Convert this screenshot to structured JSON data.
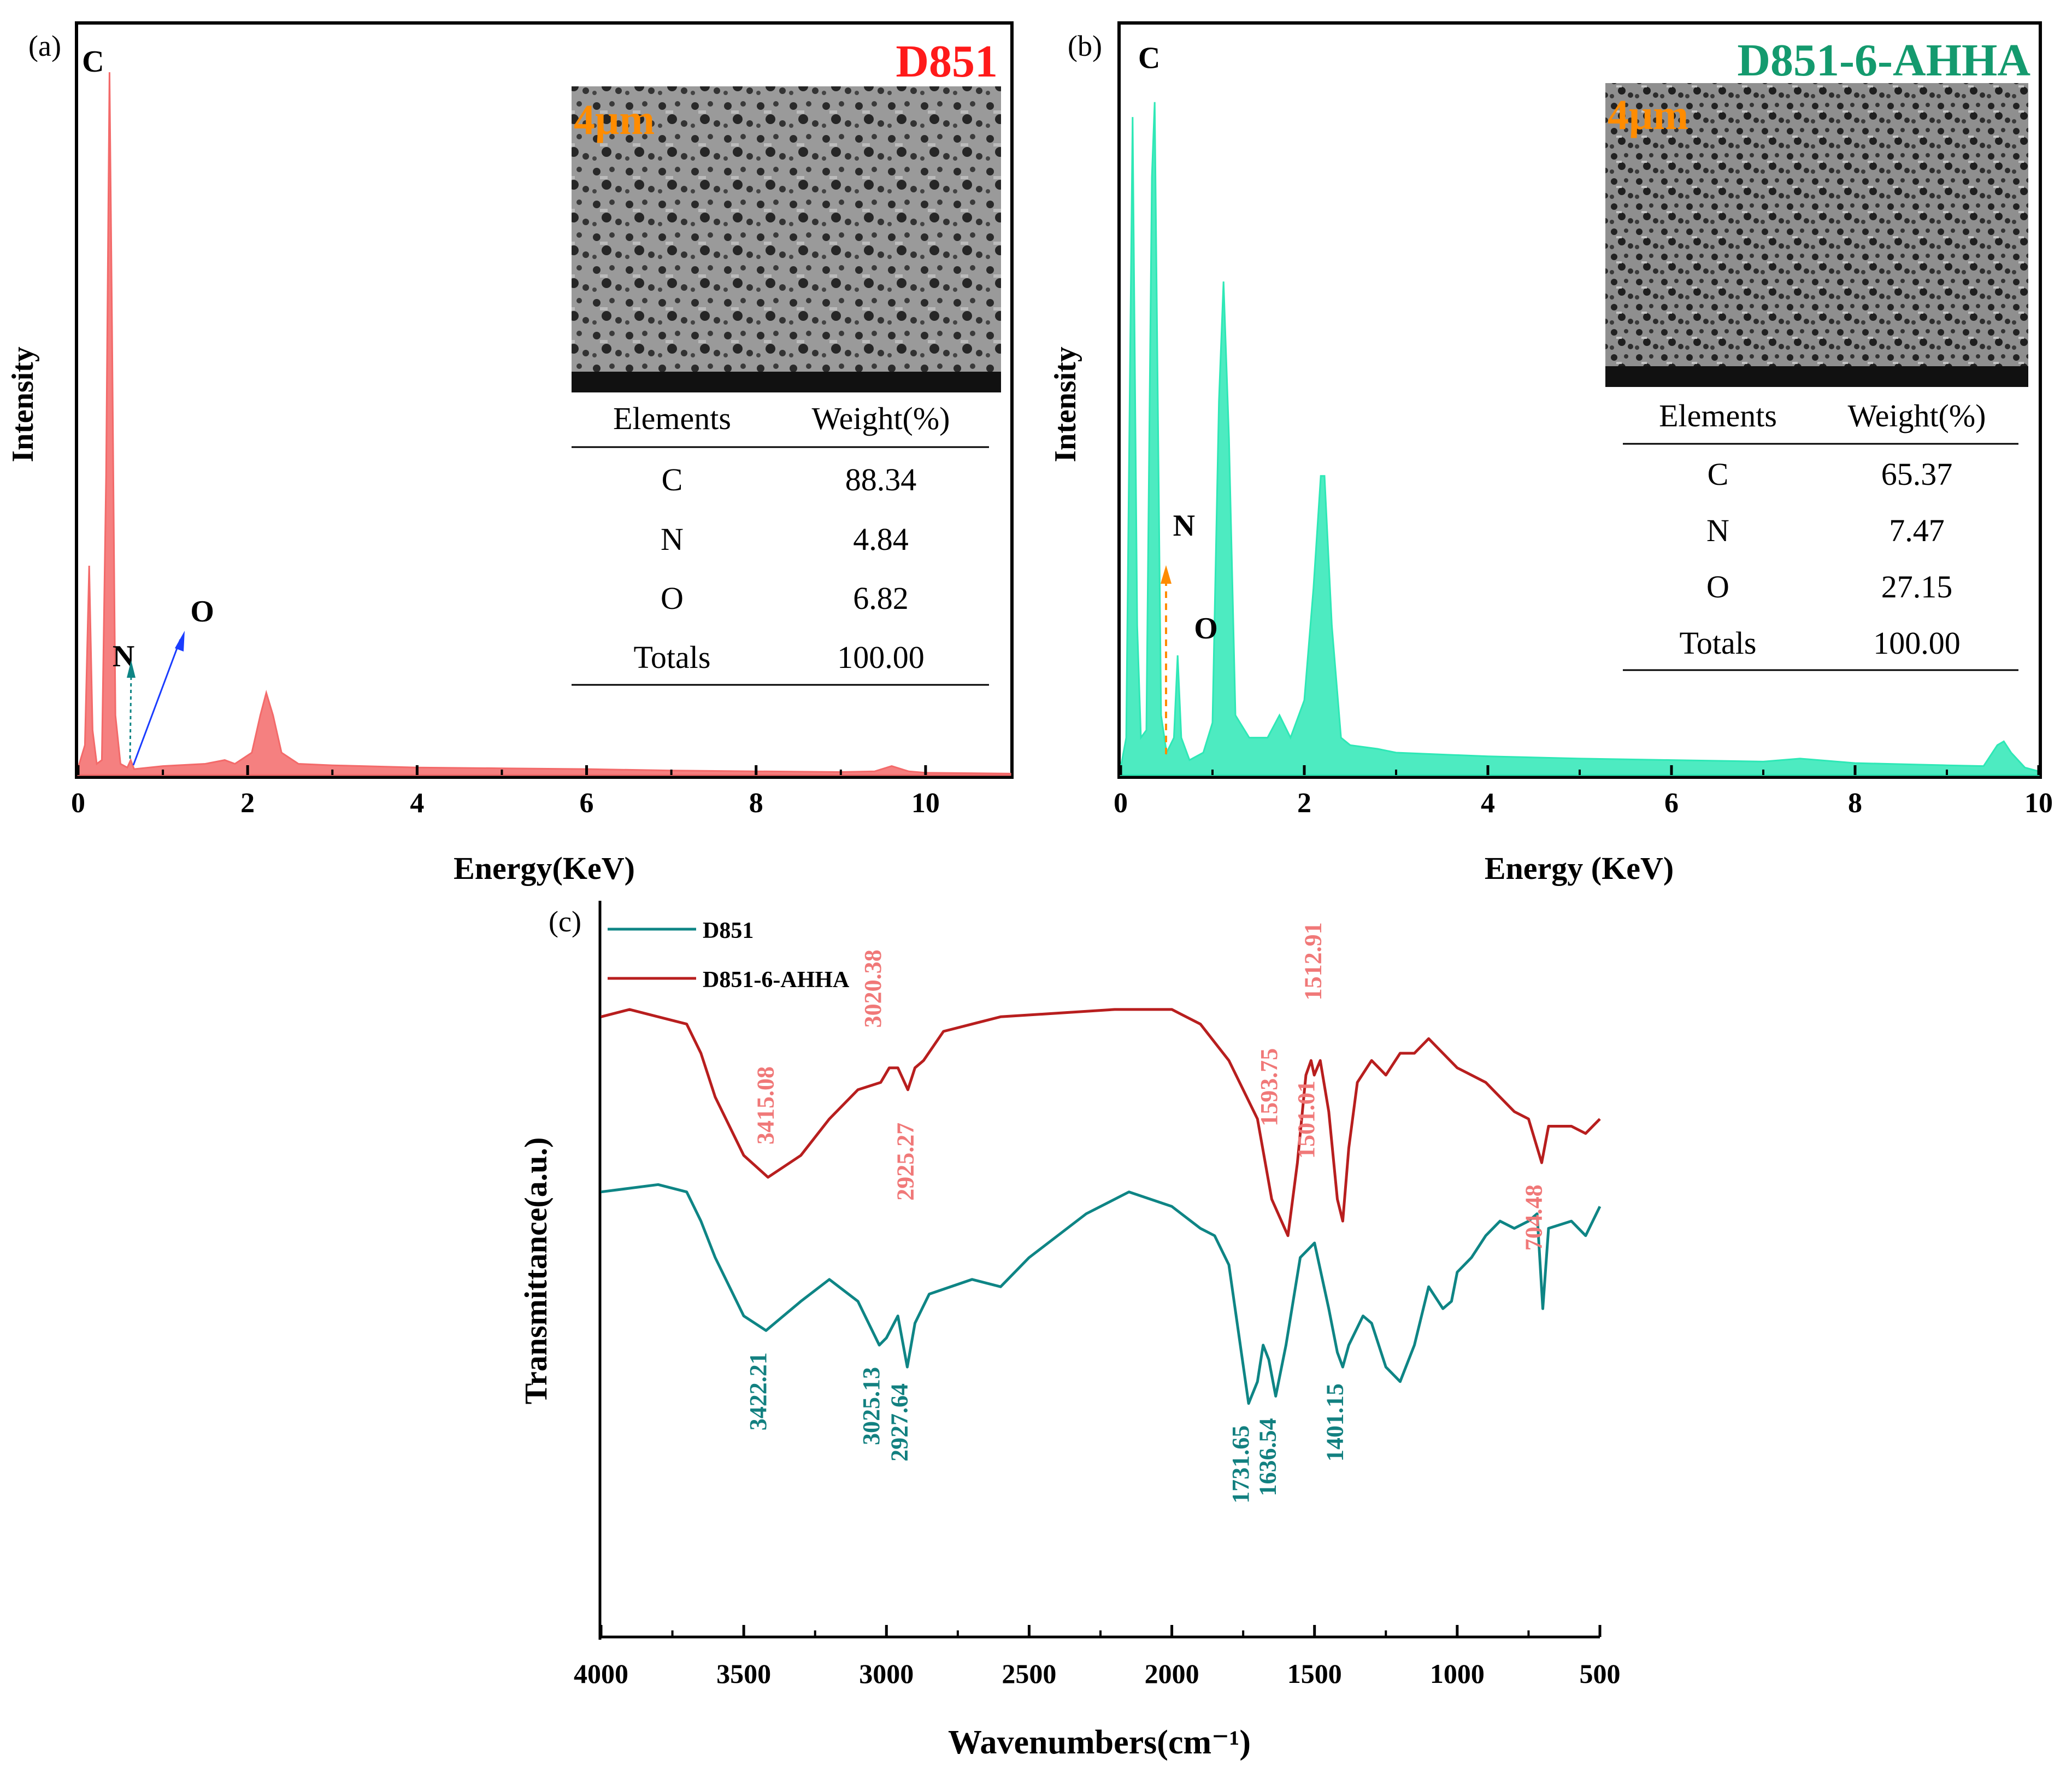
{
  "figure": {
    "panels": [
      {
        "id": "a",
        "label": "(a)",
        "title": "D851",
        "title_color": "#ff1a1a",
        "scale_bar": "4μm",
        "xlabel": "Energy(KeV)",
        "ylabel": "Intensity",
        "table": {
          "headers": [
            "Elements",
            "Weight(%)"
          ],
          "rows": [
            [
              "C",
              "88.34"
            ],
            [
              "N",
              "4.84"
            ],
            [
              "O",
              "6.82"
            ],
            [
              "Totals",
              "100.00"
            ]
          ]
        },
        "peak_labels": [
          "C",
          "N",
          "O"
        ]
      },
      {
        "id": "b",
        "label": "(b)",
        "title": "D851-6-AHHA",
        "title_color": "#149a6e",
        "scale_bar": "4μm",
        "xlabel": "Energy (KeV)",
        "ylabel": "Intensity",
        "table": {
          "headers": [
            "Elements",
            "Weight(%)"
          ],
          "rows": [
            [
              "C",
              "65.37"
            ],
            [
              "N",
              "7.47"
            ],
            [
              "O",
              "27.15"
            ],
            [
              "Totals",
              "100.00"
            ]
          ]
        },
        "peak_labels": [
          "C",
          "N",
          "O"
        ]
      },
      {
        "id": "c",
        "label": "(c)",
        "xlabel": "Wavenumbers(cm⁻¹)",
        "ylabel": "Transmittance(a.u.)",
        "legend": [
          {
            "name": "D851",
            "color": "#0e8585"
          },
          {
            "name": "D851-6-AHHA",
            "color": "#b81e1e"
          }
        ]
      }
    ]
  },
  "chart_data": [
    {
      "type": "area",
      "panel": "a",
      "x_range": [
        0,
        11
      ],
      "y_range": [
        0,
        100
      ],
      "x_ticks": [
        0,
        2,
        4,
        6,
        8,
        10
      ],
      "y_ticks": [],
      "color": "#f36a6a",
      "points": [
        [
          0,
          1
        ],
        [
          0.08,
          4
        ],
        [
          0.13,
          28
        ],
        [
          0.17,
          6
        ],
        [
          0.22,
          1.5
        ],
        [
          0.28,
          2
        ],
        [
          0.33,
          40
        ],
        [
          0.37,
          94
        ],
        [
          0.4,
          60
        ],
        [
          0.44,
          8
        ],
        [
          0.5,
          1.5
        ],
        [
          0.58,
          1
        ],
        [
          0.62,
          2
        ],
        [
          0.66,
          0.8
        ],
        [
          1,
          1.2
        ],
        [
          1.5,
          1.5
        ],
        [
          1.73,
          2
        ],
        [
          1.85,
          1.5
        ],
        [
          2.05,
          3
        ],
        [
          2.15,
          8
        ],
        [
          2.22,
          11
        ],
        [
          2.3,
          8
        ],
        [
          2.4,
          3
        ],
        [
          2.6,
          1.5
        ],
        [
          3,
          1.3
        ],
        [
          4,
          1
        ],
        [
          5,
          0.9
        ],
        [
          6,
          0.8
        ],
        [
          7,
          0.6
        ],
        [
          8,
          0.5
        ],
        [
          9,
          0.4
        ],
        [
          9.4,
          0.5
        ],
        [
          9.6,
          1.2
        ],
        [
          9.8,
          0.5
        ],
        [
          10,
          0.3
        ],
        [
          11,
          0.2
        ]
      ],
      "annotations": [
        {
          "text": "C",
          "x": 0.37,
          "y": 97
        },
        {
          "text": "N",
          "x": 0.6,
          "y": 16
        },
        {
          "text": "O",
          "x": 1.4,
          "y": 22
        }
      ]
    },
    {
      "type": "area",
      "panel": "b",
      "x_range": [
        0,
        10
      ],
      "y_range": [
        0,
        100
      ],
      "x_ticks": [
        0,
        2,
        4,
        6,
        8,
        10
      ],
      "y_ticks": [],
      "color": "#2ee8b6",
      "points": [
        [
          0,
          1
        ],
        [
          0.06,
          5
        ],
        [
          0.13,
          88
        ],
        [
          0.18,
          20
        ],
        [
          0.22,
          5
        ],
        [
          0.28,
          6
        ],
        [
          0.34,
          80
        ],
        [
          0.37,
          90
        ],
        [
          0.4,
          55
        ],
        [
          0.44,
          8
        ],
        [
          0.5,
          3
        ],
        [
          0.58,
          5
        ],
        [
          0.62,
          16
        ],
        [
          0.66,
          5
        ],
        [
          0.75,
          2
        ],
        [
          0.9,
          3
        ],
        [
          1,
          7
        ],
        [
          1.07,
          50
        ],
        [
          1.12,
          66
        ],
        [
          1.18,
          45
        ],
        [
          1.25,
          8
        ],
        [
          1.4,
          5
        ],
        [
          1.6,
          5
        ],
        [
          1.73,
          8
        ],
        [
          1.85,
          5
        ],
        [
          2,
          10
        ],
        [
          2.1,
          25
        ],
        [
          2.18,
          40
        ],
        [
          2.22,
          40
        ],
        [
          2.3,
          20
        ],
        [
          2.4,
          5
        ],
        [
          2.5,
          4
        ],
        [
          2.8,
          3.5
        ],
        [
          3,
          3
        ],
        [
          4,
          2.5
        ],
        [
          5,
          2.2
        ],
        [
          6,
          2
        ],
        [
          7,
          1.8
        ],
        [
          7.4,
          2.2
        ],
        [
          8,
          1.6
        ],
        [
          9,
          1.3
        ],
        [
          9.4,
          1.2
        ],
        [
          9.55,
          4
        ],
        [
          9.62,
          4.5
        ],
        [
          9.7,
          3
        ],
        [
          9.85,
          1
        ],
        [
          10,
          0.5
        ]
      ],
      "annotations": [
        {
          "text": "C",
          "x": 0.37,
          "y": 96
        },
        {
          "text": "N",
          "x": 0.63,
          "y": 32
        },
        {
          "text": "O",
          "x": 0.75,
          "y": 19
        }
      ]
    },
    {
      "type": "line",
      "panel": "c",
      "x_range": [
        4000,
        500
      ],
      "x_ticks": [
        4000,
        3500,
        3000,
        2500,
        2000,
        1500,
        1000,
        500
      ],
      "y_range": [
        0,
        100
      ],
      "series": [
        {
          "name": "D851-6-AHHA",
          "color": "#b81e1e",
          "points": [
            [
              4000,
              85
            ],
            [
              3900,
              86
            ],
            [
              3800,
              85
            ],
            [
              3700,
              84
            ],
            [
              3650,
              80
            ],
            [
              3600,
              74
            ],
            [
              3500,
              66
            ],
            [
              3415,
              63
            ],
            [
              3300,
              66
            ],
            [
              3200,
              71
            ],
            [
              3100,
              75
            ],
            [
              3020,
              76
            ],
            [
              2990,
              78
            ],
            [
              2960,
              78
            ],
            [
              2925,
              75
            ],
            [
              2900,
              78
            ],
            [
              2870,
              79
            ],
            [
              2800,
              83
            ],
            [
              2600,
              85
            ],
            [
              2400,
              85.5
            ],
            [
              2200,
              86
            ],
            [
              2000,
              86
            ],
            [
              1900,
              84
            ],
            [
              1800,
              79
            ],
            [
              1700,
              71
            ],
            [
              1650,
              60
            ],
            [
              1593,
              55
            ],
            [
              1560,
              65
            ],
            [
              1530,
              77
            ],
            [
              1512,
              79
            ],
            [
              1501,
              77
            ],
            [
              1480,
              79
            ],
            [
              1450,
              72
            ],
            [
              1420,
              60
            ],
            [
              1401,
              57
            ],
            [
              1380,
              67
            ],
            [
              1350,
              76
            ],
            [
              1300,
              79
            ],
            [
              1250,
              77
            ],
            [
              1200,
              80
            ],
            [
              1150,
              80
            ],
            [
              1100,
              82
            ],
            [
              1050,
              80
            ],
            [
              1000,
              78
            ],
            [
              950,
              77
            ],
            [
              900,
              76
            ],
            [
              850,
              74
            ],
            [
              800,
              72
            ],
            [
              750,
              71
            ],
            [
              704,
              65
            ],
            [
              680,
              70
            ],
            [
              600,
              70
            ],
            [
              550,
              69
            ],
            [
              500,
              71
            ]
          ]
        },
        {
          "name": "D851",
          "color": "#0e8585",
          "points": [
            [
              4000,
              61
            ],
            [
              3900,
              61.5
            ],
            [
              3800,
              62
            ],
            [
              3700,
              61
            ],
            [
              3650,
              57
            ],
            [
              3600,
              52
            ],
            [
              3500,
              44
            ],
            [
              3422,
              42
            ],
            [
              3300,
              46
            ],
            [
              3200,
              49
            ],
            [
              3100,
              46
            ],
            [
              3025,
              40
            ],
            [
              3000,
              41
            ],
            [
              2960,
              44
            ],
            [
              2927,
              37
            ],
            [
              2900,
              43
            ],
            [
              2850,
              47
            ],
            [
              2700,
              49
            ],
            [
              2600,
              48
            ],
            [
              2500,
              52
            ],
            [
              2300,
              58
            ],
            [
              2150,
              61
            ],
            [
              2000,
              59
            ],
            [
              1900,
              56
            ],
            [
              1850,
              55
            ],
            [
              1800,
              51
            ],
            [
              1760,
              40
            ],
            [
              1731,
              32
            ],
            [
              1700,
              35
            ],
            [
              1680,
              40
            ],
            [
              1660,
              38
            ],
            [
              1636,
              33
            ],
            [
              1600,
              40
            ],
            [
              1550,
              52
            ],
            [
              1500,
              54
            ],
            [
              1450,
              45
            ],
            [
              1420,
              39
            ],
            [
              1401,
              37
            ],
            [
              1380,
              40
            ],
            [
              1330,
              44
            ],
            [
              1300,
              43
            ],
            [
              1250,
              37
            ],
            [
              1200,
              35
            ],
            [
              1150,
              40
            ],
            [
              1100,
              48
            ],
            [
              1050,
              45
            ],
            [
              1020,
              46
            ],
            [
              1000,
              50
            ],
            [
              950,
              52
            ],
            [
              900,
              55
            ],
            [
              850,
              57
            ],
            [
              800,
              56
            ],
            [
              750,
              57
            ],
            [
              720,
              58
            ],
            [
              700,
              45
            ],
            [
              680,
              56
            ],
            [
              600,
              57
            ],
            [
              550,
              55
            ],
            [
              500,
              59
            ]
          ]
        }
      ],
      "annotations": [
        {
          "text": "3415.08",
          "x": 3415,
          "series": "D851-6-AHHA"
        },
        {
          "text": "3020.38",
          "x": 3020,
          "series": "D851-6-AHHA"
        },
        {
          "text": "2925.27",
          "x": 2925,
          "series": "D851-6-AHHA"
        },
        {
          "text": "1593.75",
          "x": 1593,
          "series": "D851-6-AHHA"
        },
        {
          "text": "1512.91",
          "x": 1512,
          "series": "D851-6-AHHA"
        },
        {
          "text": "1501.01",
          "x": 1501,
          "series": "D851-6-AHHA"
        },
        {
          "text": "704.48",
          "x": 704,
          "series": "D851-6-AHHA"
        },
        {
          "text": "3422.21",
          "x": 3422,
          "series": "D851"
        },
        {
          "text": "3025.13",
          "x": 3025,
          "series": "D851"
        },
        {
          "text": "2927.64",
          "x": 2927,
          "series": "D851"
        },
        {
          "text": "1731.65",
          "x": 1731,
          "series": "D851"
        },
        {
          "text": "1636.54",
          "x": 1636,
          "series": "D851"
        },
        {
          "text": "1401.15",
          "x": 1401,
          "series": "D851"
        }
      ]
    }
  ]
}
